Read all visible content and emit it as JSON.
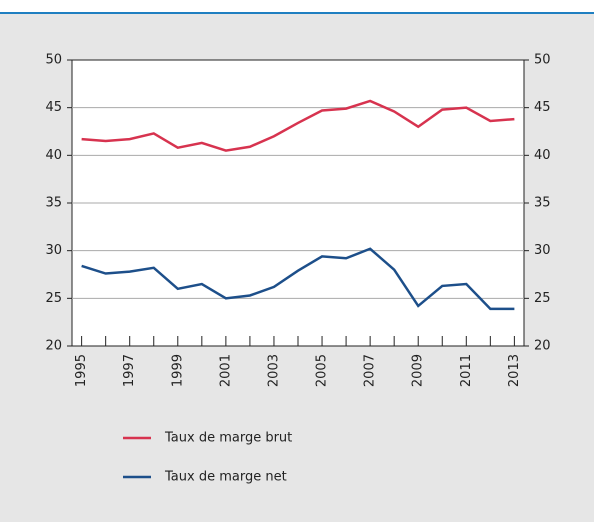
{
  "chart_data": {
    "type": "line",
    "x": [
      1995,
      1996,
      1997,
      1998,
      1999,
      2000,
      2001,
      2002,
      2003,
      2004,
      2005,
      2006,
      2007,
      2008,
      2009,
      2010,
      2011,
      2012,
      2013
    ],
    "series": [
      {
        "name": "Taux de marge brut",
        "color": "#d7334f",
        "values": [
          41.7,
          41.5,
          41.7,
          42.3,
          40.8,
          41.3,
          40.5,
          40.9,
          42.0,
          43.4,
          44.7,
          44.9,
          45.7,
          44.6,
          43.0,
          44.8,
          45.0,
          43.6,
          43.8
        ]
      },
      {
        "name": "Taux de marge net",
        "color": "#1d4f8a",
        "values": [
          28.4,
          27.6,
          27.8,
          28.2,
          26.0,
          26.5,
          25.0,
          25.3,
          26.2,
          27.9,
          29.4,
          29.2,
          30.2,
          28.0,
          24.2,
          26.3,
          26.5,
          23.9,
          23.9
        ]
      }
    ],
    "xlim": [
      1994.6,
      2013.4
    ],
    "xticks": [
      1995,
      1997,
      1999,
      2001,
      2003,
      2005,
      2007,
      2009,
      2011,
      2013
    ],
    "ylim": [
      20,
      50
    ],
    "yticks": [
      20,
      25,
      30,
      35,
      40,
      45,
      50
    ],
    "y2lim": [
      20,
      50
    ],
    "y2ticks": [
      20,
      25,
      30,
      35,
      40,
      45,
      50
    ],
    "grid": true
  }
}
